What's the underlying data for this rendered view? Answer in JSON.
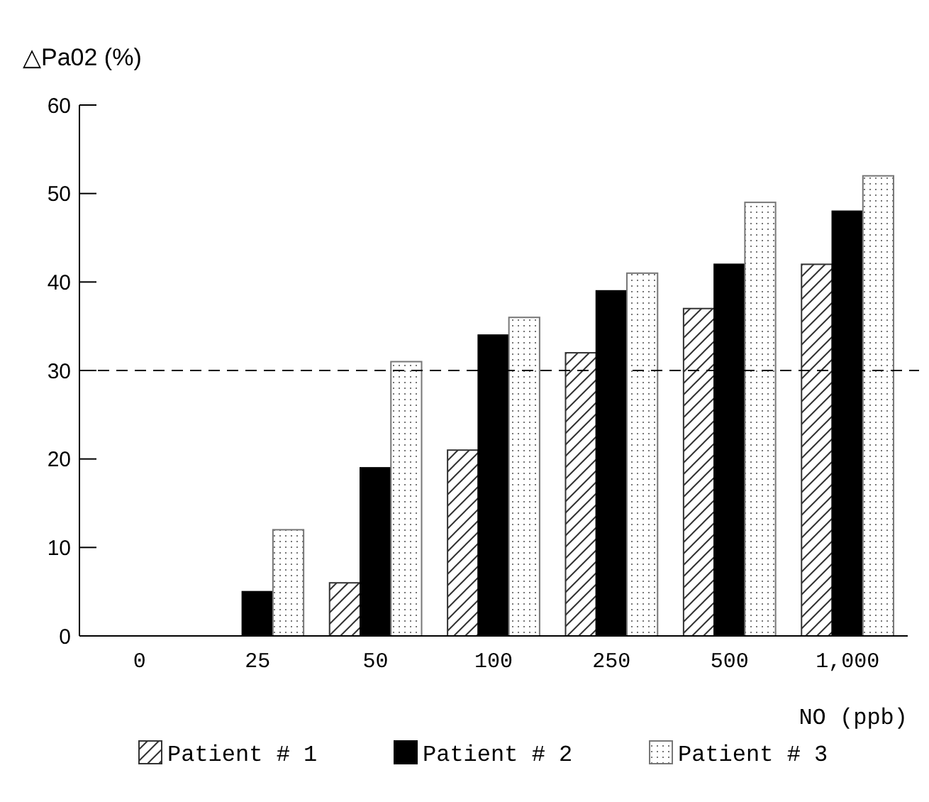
{
  "chart_data": {
    "type": "bar",
    "ylabel": "△Pa02 (%)",
    "xlabel": "NO (ppb)",
    "categories": [
      "0",
      "25",
      "50",
      "100",
      "250",
      "500",
      "1,000"
    ],
    "series": [
      {
        "name": "Patient # 1",
        "color": "#333333",
        "values": [
          0,
          0,
          6,
          21,
          32,
          37,
          42
        ]
      },
      {
        "name": "Patient # 2",
        "color": "#000000",
        "values": [
          0,
          5,
          19,
          34,
          39,
          42,
          48
        ]
      },
      {
        "name": "Patient # 3",
        "color": "#777777",
        "values": [
          0,
          12,
          31,
          36,
          41,
          49,
          52
        ]
      }
    ],
    "ylim": [
      0,
      60
    ],
    "yticks": [
      0,
      10,
      20,
      30,
      40,
      50,
      60
    ],
    "ref_lines": [
      {
        "axis": "y",
        "value": 30,
        "line_style": "dashed",
        "color": "#000000"
      }
    ],
    "grid": false,
    "legend": "bottom"
  }
}
